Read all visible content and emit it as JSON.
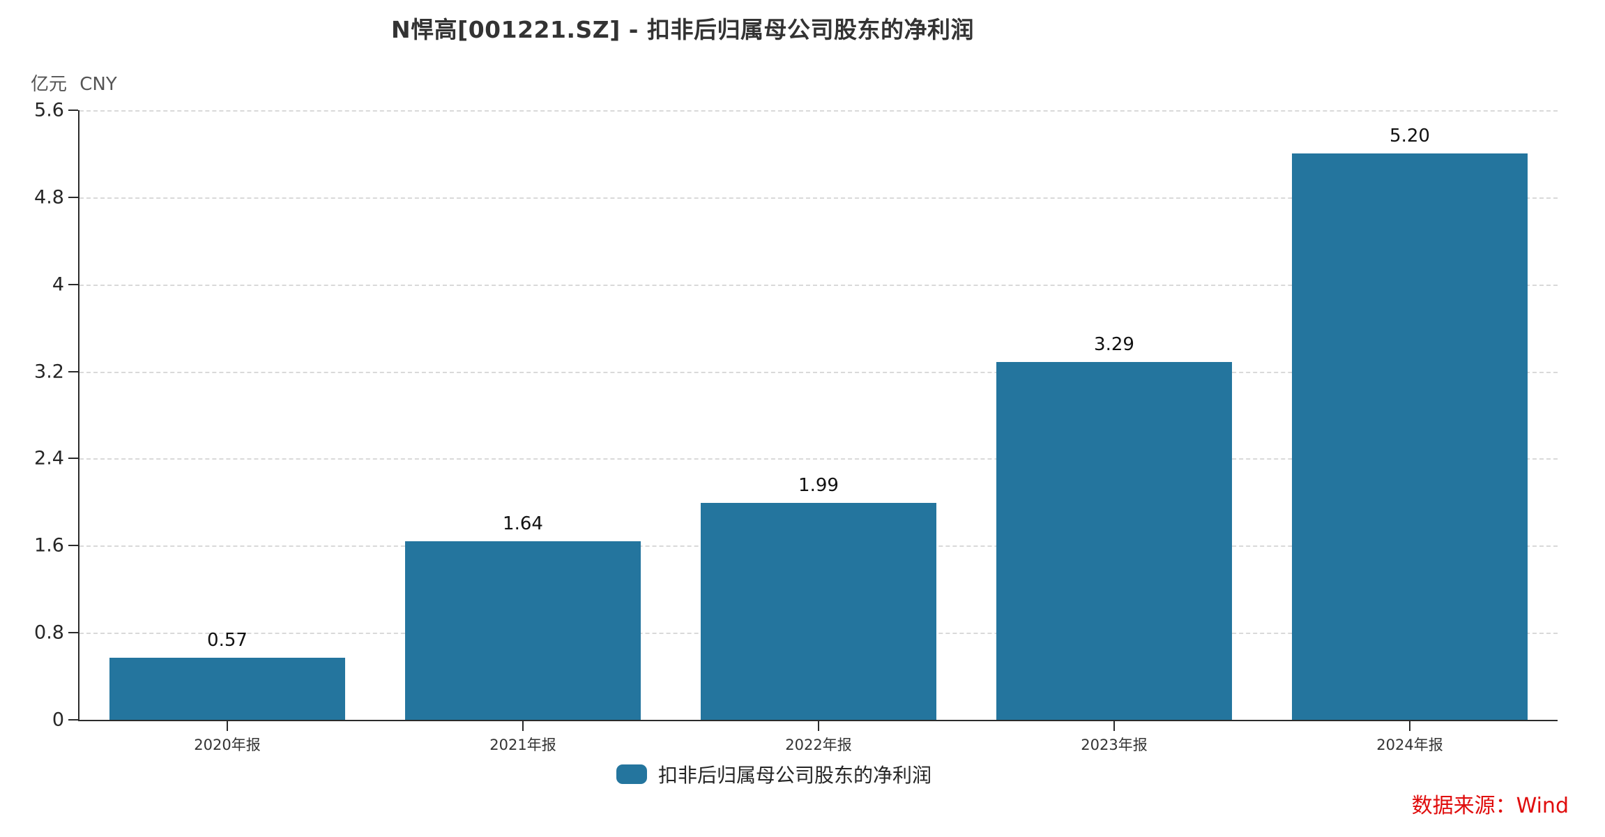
{
  "chart_data": {
    "type": "bar",
    "title": "N悍高[001221.SZ] - 扣非后归属母公司股东的净利润",
    "unit_label": "亿元 CNY",
    "categories": [
      "2020年报",
      "2021年报",
      "2022年报",
      "2023年报",
      "2024年报"
    ],
    "values": [
      0.57,
      1.64,
      1.99,
      3.29,
      5.2
    ],
    "value_labels": [
      "0.57",
      "1.64",
      "1.99",
      "3.29",
      "5.20"
    ],
    "series_name": "扣非后归属母公司股东的净利润",
    "xlabel": "",
    "ylabel": "亿元 CNY",
    "ylim": [
      0,
      5.6
    ],
    "y_ticks": [
      {
        "value": 0,
        "label": "0"
      },
      {
        "value": 0.8,
        "label": "0.8"
      },
      {
        "value": 1.6,
        "label": "1.6"
      },
      {
        "value": 2.4,
        "label": "2.4"
      },
      {
        "value": 3.2,
        "label": "3.2"
      },
      {
        "value": 4,
        "label": "4"
      },
      {
        "value": 4.8,
        "label": "4.8"
      },
      {
        "value": 5.6,
        "label": "5.6"
      }
    ],
    "grid": "horizontal-dashed",
    "legend_position": "bottom",
    "legend": [
      {
        "label": "扣非后归属母公司股东的净利润",
        "color": "#24759E"
      }
    ],
    "bar_color": "#24759E",
    "source_note": "数据来源：Wind",
    "source_color": "#E00D0D"
  }
}
